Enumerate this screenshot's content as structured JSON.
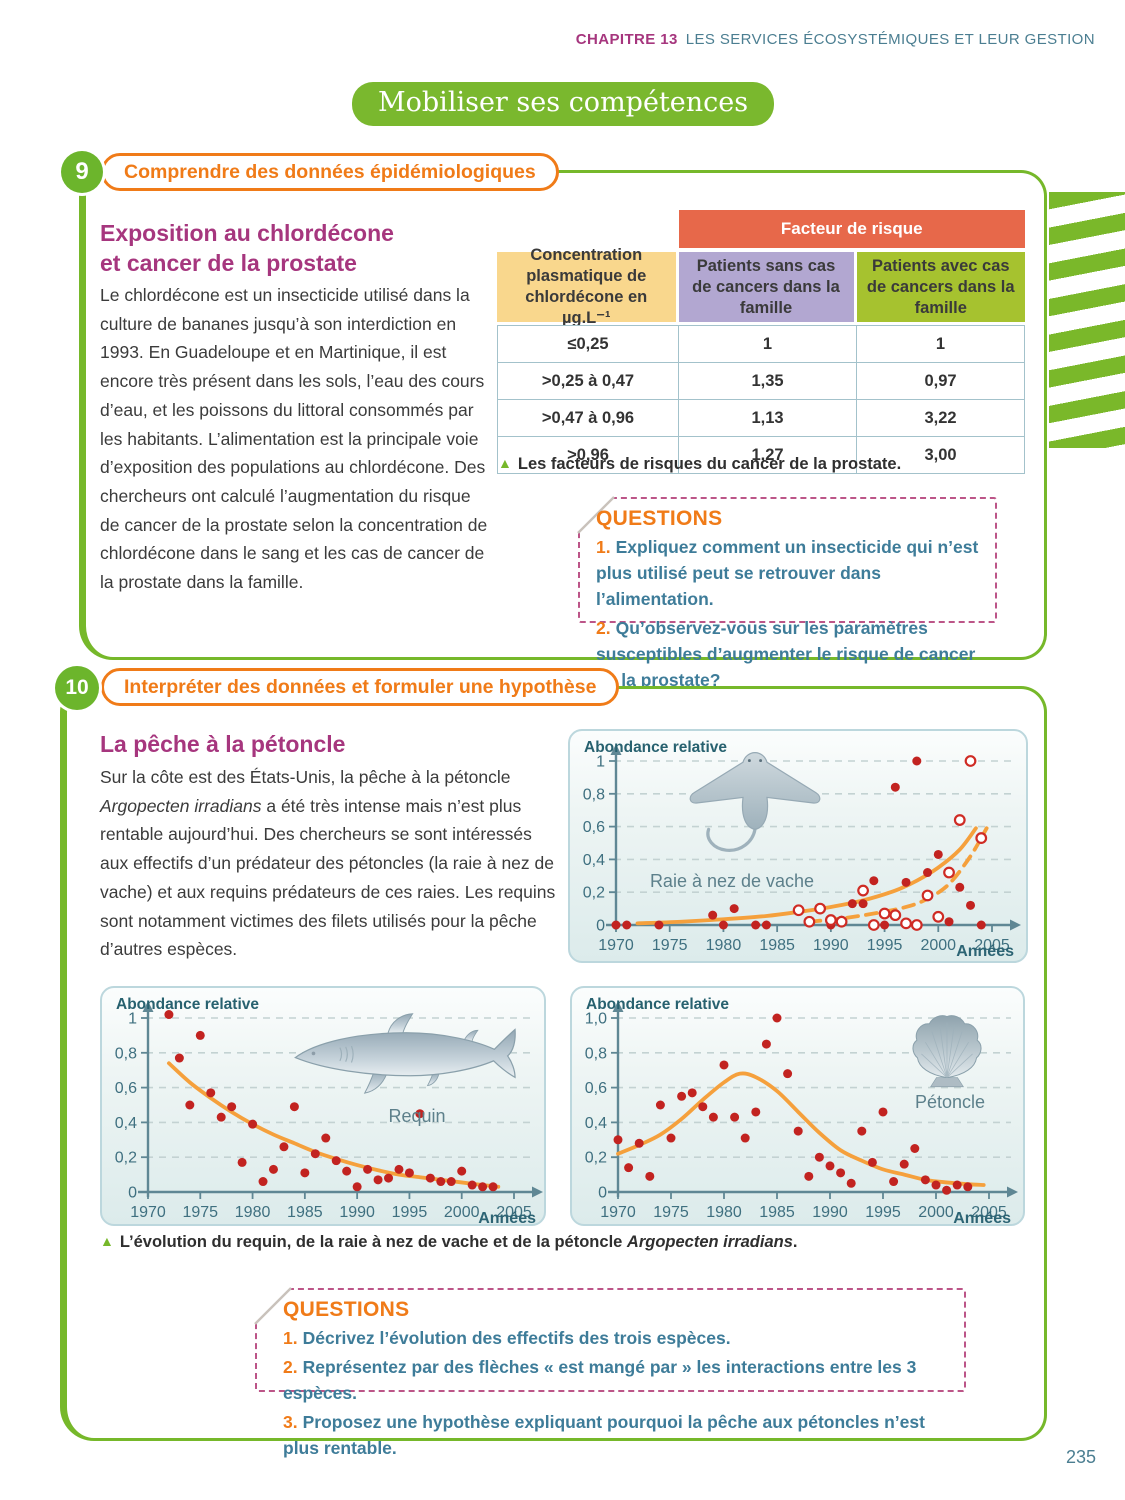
{
  "header": {
    "chapter_label": "CHAPITRE 13",
    "chapter_title": "LES SERVICES ÉCOSYSTÉMIQUES ET LEUR GESTION"
  },
  "banner": {
    "title": "Mobiliser ses compétences"
  },
  "page": {
    "number": "235"
  },
  "palette": {
    "brand_green": "#76b82a",
    "orange_accent": "#f07b18",
    "magenta_title": "#a6367e",
    "teal_text": "#3e7c99",
    "table_risk_orange": "#e7684a",
    "table_yellow": "#f9d78d",
    "table_purple": "#b2a7d1",
    "table_green": "#a6c22f",
    "questions_border_pink": "#bc5588",
    "curve_orange": "#f5a03c",
    "dot_red": "#c22320",
    "axis_teal": "#5f8794"
  },
  "section9": {
    "number": "9",
    "skill": "Comprendre des données épidémiologiques",
    "title_line1": "Exposition au chlordécone",
    "title_line2": "et cancer de la prostate",
    "body": "Le chlordécone est un insecticide utilisé dans la culture de bananes jusqu’à son interdiction en 1993. En Guadeloupe et en Martinique, il est encore très présent dans les sols, l’eau des cours d’eau, et les poissons du littoral consommés par les habitants. L’alimentation est la principale voie d’exposition des populations au chlordécone. Des chercheurs ont calculé l’augmentation du risque de cancer de la prostate selon la concentration de chlordécone dans le sang et les cas de cancer de la prostate dans la famille.",
    "table": {
      "risk_header": "Facteur de risque",
      "col_headers": [
        "Concentration plasmatique de chlordécone en µg.L⁻¹",
        "Patients sans cas de cancers dans la famille",
        "Patients avec cas de cancers dans la famille"
      ],
      "rows": [
        [
          "≤0,25",
          "1",
          "1"
        ],
        [
          ">0,25 à 0,47",
          "1,35",
          "0,97"
        ],
        [
          ">0,47 à 0,96",
          "1,13",
          "3,22"
        ],
        [
          ">0,96",
          "1,27",
          "3,00"
        ]
      ]
    },
    "caption": "Les facteurs de risques du cancer de la prostate.",
    "questions": {
      "title": "QUESTIONS",
      "items": [
        {
          "num": "1.",
          "text": "Expliquez comment un insecticide qui n’est plus utilisé peut se retrouver dans l’alimentation."
        },
        {
          "num": "2.",
          "text": "Qu’observez-vous sur les paramètres susceptibles d’augmenter le risque de cancer de la prostate?"
        }
      ]
    }
  },
  "section10": {
    "number": "10",
    "skill": "Interpréter des données et formuler une hypothèse",
    "title": "La pêche à la pétoncle",
    "body_part1": "Sur la côte est des États-Unis, la pêche à la pétoncle ",
    "body_italic": "Argopecten irradians",
    "body_part2": " a été très intense mais n’est plus rentable aujourd’hui. Des chercheurs se sont intéressés aux effectifs d’un prédateur des pétoncles (la raie à nez de vache) et aux requins prédateurs de ces raies. Les requins sont notamment victimes des filets utilisés pour la pêche d’autres espèces.",
    "caption_part1": "L’évolution du requin, de la raie à nez de vache et de la pétoncle ",
    "caption_italic": "Argopecten irradians",
    "caption_part2": ".",
    "questions": {
      "title": "QUESTIONS",
      "items": [
        {
          "num": "1.",
          "text": "Décrivez l’évolution des effectifs des trois espèces."
        },
        {
          "num": "2.",
          "text": "Représentez par des flèches « est mangé par » les interactions entre les 3 espèces."
        },
        {
          "num": "3.",
          "text": "Proposez une hypothèse expliquant pourquoi la pêche aux pétoncles n’est plus rentable."
        }
      ]
    }
  },
  "chart_data": [
    {
      "id": "ray",
      "type": "scatter",
      "ylabel": "Abondance relative",
      "xlabel": "Années",
      "species": "Raie à nez de vache",
      "xlim": [
        1970,
        2005
      ],
      "ylim": [
        0,
        1
      ],
      "x_ticks": [
        1970,
        1975,
        1980,
        1985,
        1990,
        1995,
        2000,
        2005
      ],
      "y_ticks": [
        {
          "v": 1,
          "label": "1"
        },
        {
          "v": 0.8,
          "label": "0,8"
        },
        {
          "v": 0.6,
          "label": "0,6"
        },
        {
          "v": 0.4,
          "label": "0,4"
        },
        {
          "v": 0.2,
          "label": "0,2"
        },
        {
          "v": 0,
          "label": "0"
        }
      ],
      "grid": true,
      "series": [
        {
          "name": "filled-dots",
          "marker": "filled",
          "color": "#c22320",
          "points": [
            [
              1970,
              0
            ],
            [
              1971,
              0
            ],
            [
              1974,
              0
            ],
            [
              1979,
              0.06
            ],
            [
              1980,
              0
            ],
            [
              1981,
              0.1
            ],
            [
              1983,
              0
            ],
            [
              1984,
              0
            ],
            [
              1990,
              0
            ],
            [
              1991,
              0.03
            ],
            [
              1992,
              0.13
            ],
            [
              1993,
              0.13
            ],
            [
              1994,
              0.27
            ],
            [
              1995,
              0
            ],
            [
              1996,
              0.84
            ],
            [
              1997,
              0.26
            ],
            [
              1998,
              1.0
            ],
            [
              1999,
              0.32
            ],
            [
              2000,
              0.43
            ],
            [
              2001,
              0.02
            ],
            [
              2002,
              0.23
            ],
            [
              2003,
              0.12
            ],
            [
              2004,
              0
            ]
          ]
        },
        {
          "name": "open-circles",
          "marker": "open",
          "color": "#cf2b24",
          "points": [
            [
              1987,
              0.09
            ],
            [
              1988,
              0.02
            ],
            [
              1989,
              0.1
            ],
            [
              1990,
              0.03
            ],
            [
              1991,
              0.02
            ],
            [
              1993,
              0.21
            ],
            [
              1994,
              0
            ],
            [
              1995,
              0.07
            ],
            [
              1996,
              0.06
            ],
            [
              1997,
              0.01
            ],
            [
              1998,
              0
            ],
            [
              1999,
              0.18
            ],
            [
              2000,
              0.05
            ],
            [
              2001,
              0.32
            ],
            [
              2002,
              0.64
            ],
            [
              2003,
              1.0
            ],
            [
              2004,
              0.53
            ]
          ]
        }
      ],
      "curves": [
        {
          "style": "solid",
          "color": "#f5a03c",
          "points": [
            [
              1972,
              0.01
            ],
            [
              1976,
              0.02
            ],
            [
              1980,
              0.035
            ],
            [
              1984,
              0.055
            ],
            [
              1987,
              0.08
            ],
            [
              1990,
              0.11
            ],
            [
              1993,
              0.15
            ],
            [
              1996,
              0.21
            ],
            [
              1998,
              0.27
            ],
            [
              2000,
              0.35
            ],
            [
              2002,
              0.46
            ],
            [
              2003.5,
              0.59
            ]
          ]
        },
        {
          "style": "dashed",
          "color": "#f5a03c",
          "points": [
            [
              1988,
              0.02
            ],
            [
              1991,
              0.04
            ],
            [
              1994,
              0.07
            ],
            [
              1997,
              0.11
            ],
            [
              1999,
              0.16
            ],
            [
              2001,
              0.25
            ],
            [
              2003,
              0.42
            ],
            [
              2004.5,
              0.59
            ]
          ]
        }
      ]
    },
    {
      "id": "shark",
      "type": "scatter",
      "ylabel": "Abondance relative",
      "xlabel": "Années",
      "species": "Requin",
      "xlim": [
        1970,
        2005
      ],
      "ylim": [
        0,
        1
      ],
      "x_ticks": [
        1970,
        1975,
        1980,
        1985,
        1990,
        1995,
        2000,
        2005
      ],
      "y_ticks": [
        {
          "v": 1,
          "label": "1"
        },
        {
          "v": 0.8,
          "label": "0,8"
        },
        {
          "v": 0.6,
          "label": "0,6"
        },
        {
          "v": 0.4,
          "label": "0,4"
        },
        {
          "v": 0.2,
          "label": "0,2"
        },
        {
          "v": 0,
          "label": "0"
        }
      ],
      "grid": true,
      "series": [
        {
          "name": "filled-dots",
          "marker": "filled",
          "color": "#c22320",
          "points": [
            [
              1972,
              1.02
            ],
            [
              1973,
              0.77
            ],
            [
              1974,
              0.5
            ],
            [
              1975,
              0.9
            ],
            [
              1976,
              0.57
            ],
            [
              1977,
              0.43
            ],
            [
              1978,
              0.49
            ],
            [
              1979,
              0.17
            ],
            [
              1980,
              0.39
            ],
            [
              1981,
              0.06
            ],
            [
              1982,
              0.13
            ],
            [
              1983,
              0.26
            ],
            [
              1984,
              0.49
            ],
            [
              1985,
              0.11
            ],
            [
              1986,
              0.22
            ],
            [
              1987,
              0.31
            ],
            [
              1988,
              0.18
            ],
            [
              1989,
              0.12
            ],
            [
              1990,
              0.03
            ],
            [
              1991,
              0.13
            ],
            [
              1992,
              0.07
            ],
            [
              1993,
              0.08
            ],
            [
              1994,
              0.13
            ],
            [
              1995,
              0.11
            ],
            [
              1996,
              0.45
            ],
            [
              1997,
              0.08
            ],
            [
              1998,
              0.06
            ],
            [
              1999,
              0.06
            ],
            [
              2000,
              0.12
            ],
            [
              2001,
              0.04
            ],
            [
              2002,
              0.03
            ],
            [
              2003,
              0.03
            ]
          ]
        }
      ],
      "curves": [
        {
          "style": "solid",
          "color": "#f5a03c",
          "points": [
            [
              1972,
              0.74
            ],
            [
              1974,
              0.63
            ],
            [
              1976,
              0.54
            ],
            [
              1978,
              0.46
            ],
            [
              1980,
              0.39
            ],
            [
              1982,
              0.33
            ],
            [
              1984,
              0.28
            ],
            [
              1986,
              0.23
            ],
            [
              1988,
              0.19
            ],
            [
              1990,
              0.155
            ],
            [
              1992,
              0.125
            ],
            [
              1994,
              0.1
            ],
            [
              1996,
              0.085
            ],
            [
              1998,
              0.07
            ],
            [
              2000,
              0.055
            ],
            [
              2002,
              0.04
            ],
            [
              2003.5,
              0.03
            ]
          ]
        }
      ]
    },
    {
      "id": "scallop",
      "type": "scatter",
      "ylabel": "Abondance relative",
      "xlabel": "Années",
      "species": "Pétoncle",
      "xlim": [
        1970,
        2005
      ],
      "ylim": [
        0,
        1
      ],
      "x_ticks": [
        1970,
        1975,
        1980,
        1985,
        1990,
        1995,
        2000,
        2005
      ],
      "y_ticks": [
        {
          "v": 1,
          "label": "1,0"
        },
        {
          "v": 0.8,
          "label": "0,8"
        },
        {
          "v": 0.6,
          "label": "0,6"
        },
        {
          "v": 0.4,
          "label": "0,4"
        },
        {
          "v": 0.2,
          "label": "0,2"
        },
        {
          "v": 0,
          "label": "0"
        }
      ],
      "grid": true,
      "series": [
        {
          "name": "filled-dots",
          "marker": "filled",
          "color": "#c22320",
          "points": [
            [
              1970,
              0.3
            ],
            [
              1971,
              0.14
            ],
            [
              1972,
              0.28
            ],
            [
              1973,
              0.09
            ],
            [
              1974,
              0.5
            ],
            [
              1975,
              0.31
            ],
            [
              1976,
              0.55
            ],
            [
              1977,
              0.57
            ],
            [
              1978,
              0.49
            ],
            [
              1979,
              0.43
            ],
            [
              1980,
              0.73
            ],
            [
              1981,
              0.43
            ],
            [
              1982,
              0.31
            ],
            [
              1983,
              0.46
            ],
            [
              1984,
              0.85
            ],
            [
              1985,
              1.0
            ],
            [
              1986,
              0.68
            ],
            [
              1987,
              0.35
            ],
            [
              1988,
              0.09
            ],
            [
              1989,
              0.2
            ],
            [
              1990,
              0.15
            ],
            [
              1991,
              0.11
            ],
            [
              1992,
              0.05
            ],
            [
              1993,
              0.35
            ],
            [
              1994,
              0.17
            ],
            [
              1995,
              0.46
            ],
            [
              1996,
              0.06
            ],
            [
              1997,
              0.16
            ],
            [
              1998,
              0.25
            ],
            [
              1999,
              0.07
            ],
            [
              2000,
              0.04
            ],
            [
              2001,
              0.01
            ],
            [
              2002,
              0.04
            ],
            [
              2003,
              0.03
            ]
          ]
        }
      ],
      "curves": [
        {
          "style": "solid",
          "color": "#f5a03c",
          "points": [
            [
              1970,
              0.22
            ],
            [
              1972,
              0.27
            ],
            [
              1974,
              0.33
            ],
            [
              1976,
              0.42
            ],
            [
              1978,
              0.53
            ],
            [
              1980,
              0.63
            ],
            [
              1981.5,
              0.68
            ],
            [
              1983,
              0.66
            ],
            [
              1985,
              0.58
            ],
            [
              1987,
              0.46
            ],
            [
              1989,
              0.34
            ],
            [
              1991,
              0.24
            ],
            [
              1993,
              0.18
            ],
            [
              1995,
              0.13
            ],
            [
              1997,
              0.1
            ],
            [
              1999,
              0.07
            ],
            [
              2001,
              0.055
            ],
            [
              2003,
              0.045
            ],
            [
              2004.5,
              0.04
            ]
          ]
        }
      ]
    }
  ]
}
